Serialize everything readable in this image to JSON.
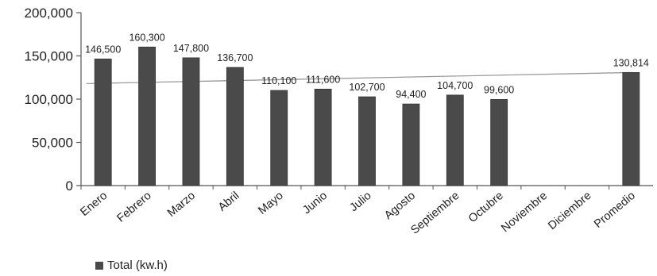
{
  "chart_data": {
    "type": "bar",
    "categories": [
      "Enero",
      "Febrero",
      "Marzo",
      "Abril",
      "Mayo",
      "Junio",
      "Julio",
      "Agosto",
      "Septiembre",
      "Octubre",
      "Noviembre",
      "Diciembre",
      "Promedio"
    ],
    "series": [
      {
        "name": "Total (kw.h)",
        "values": [
          146500,
          160300,
          147800,
          136700,
          110100,
          111600,
          102700,
          94400,
          104700,
          99600,
          null,
          null,
          130814
        ]
      }
    ],
    "data_labels": [
      "146,500",
      "160,300",
      "147,800",
      "136,700",
      "110,100",
      "111,600",
      "102,700",
      "94,400",
      "104,700",
      "99,600",
      "",
      "",
      "130,814"
    ],
    "y_ticks": [
      "0",
      "50,000",
      "100,000",
      "150,000",
      "200,000"
    ],
    "y_tick_values": [
      0,
      50000,
      100000,
      150000,
      200000
    ],
    "ylim": [
      0,
      200000
    ],
    "reference_line": {
      "from": 118000,
      "to": 130814
    },
    "bar_color": "#4a4a4a",
    "line_color": "#9a9a9a",
    "legend_position": "bottom-left",
    "grid": false
  }
}
